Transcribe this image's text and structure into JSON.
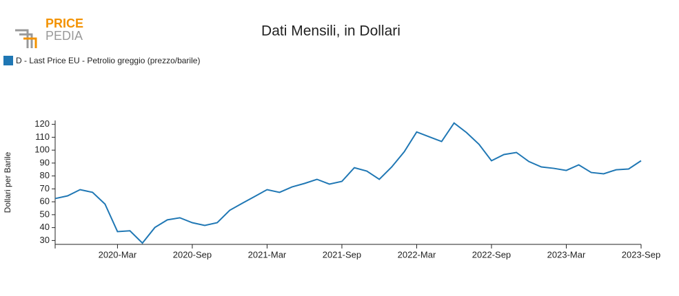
{
  "logo": {
    "top": "PRICE",
    "bottom": "PEDIA"
  },
  "chart_data": {
    "type": "line",
    "title": "Dati Mensili, in Dollari",
    "y_label": "Dollari per Barile",
    "categories": [
      null,
      null,
      null,
      null,
      null,
      "2020-Mar",
      null,
      null,
      null,
      null,
      null,
      "2020-Sep",
      null,
      null,
      null,
      null,
      null,
      "2021-Mar",
      null,
      null,
      null,
      null,
      null,
      "2021-Sep",
      null,
      null,
      null,
      null,
      null,
      "2022-Mar",
      null,
      null,
      null,
      null,
      null,
      "2022-Sep",
      null,
      null,
      null,
      null,
      null,
      "2023-Mar",
      null,
      null,
      null,
      null,
      null,
      "2023-Sep"
    ],
    "series": [
      {
        "name": "D - Last Price EU - Petrolio greggio (prezzo/barile)",
        "color": "#1f77b4",
        "values": [
          62.5,
          64.6,
          69.4,
          67.3,
          58.2,
          36.9,
          37.5,
          28,
          40.1,
          46,
          47.6,
          43.8,
          41.7,
          43.8,
          53.4,
          58.8,
          64.1,
          69.4,
          67.3,
          71.5,
          74.2,
          77.4,
          73.7,
          75.8,
          86.4,
          83.8,
          77.4,
          87,
          98.7,
          114.1,
          110.4,
          106.7,
          121,
          113.6,
          104.5,
          91.8,
          96.6,
          98.2,
          91.2,
          87,
          85.9,
          84.3,
          88.6,
          82.7,
          81.7,
          84.8,
          85.4,
          91.8
        ]
      }
    ],
    "ylim": [
      27,
      123
    ],
    "yticks": [
      30,
      40,
      50,
      60,
      70,
      80,
      90,
      100,
      110,
      120
    ],
    "legend": "top-left"
  }
}
